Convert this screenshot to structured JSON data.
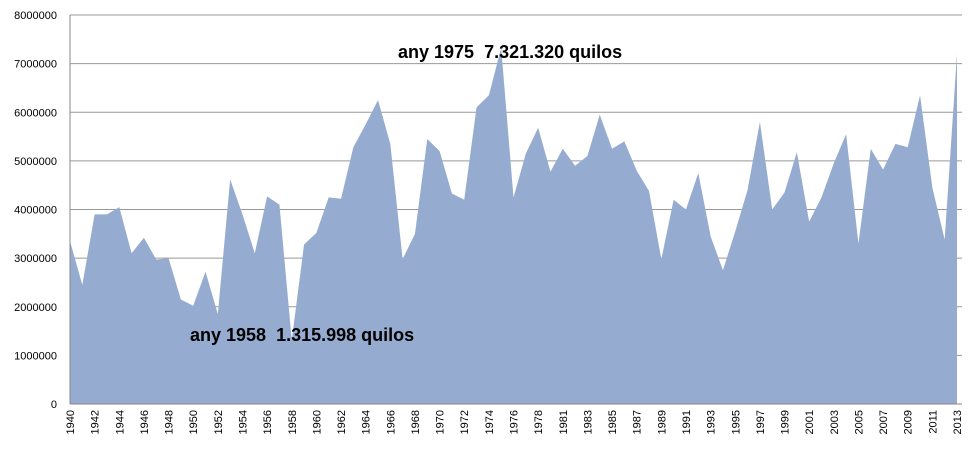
{
  "chart_data": {
    "type": "area",
    "categories": [
      "1940",
      null,
      "1942",
      null,
      "1944",
      null,
      "1946",
      null,
      "1948",
      null,
      "1950",
      null,
      "1952",
      null,
      "1954",
      null,
      "1956",
      null,
      "1958",
      null,
      "1960",
      null,
      "1962",
      null,
      "1964",
      null,
      "1966",
      null,
      "1968",
      null,
      "1970",
      null,
      "1972",
      null,
      "1974",
      null,
      "1976",
      null,
      "1978",
      null,
      "1981",
      null,
      "1983",
      null,
      "1985",
      null,
      "1987",
      null,
      "1989",
      null,
      "1991",
      null,
      "1993",
      null,
      "1995",
      null,
      "1997",
      null,
      "1999",
      null,
      "2001",
      null,
      "2003",
      null,
      "2005",
      null,
      "2007",
      null,
      "2009",
      null,
      "2011",
      null,
      "2013"
    ],
    "values": [
      3350000,
      2450000,
      3900000,
      3900000,
      4050000,
      3100000,
      3420000,
      2970000,
      3000000,
      2150000,
      2020000,
      2720000,
      1850000,
      4620000,
      3900000,
      3100000,
      4270000,
      4100000,
      1315998,
      3280000,
      3520000,
      4250000,
      4220000,
      5280000,
      5750000,
      6250000,
      5350000,
      2980000,
      3500000,
      5450000,
      5200000,
      4330000,
      4200000,
      6100000,
      6350000,
      7321320,
      4250000,
      5150000,
      5680000,
      4780000,
      5250000,
      4900000,
      5100000,
      5950000,
      5250000,
      5400000,
      4800000,
      4380000,
      2980000,
      4200000,
      4000000,
      4750000,
      3450000,
      2750000,
      3550000,
      4400000,
      5800000,
      4000000,
      4350000,
      5180000,
      3750000,
      4250000,
      4950000,
      5550000,
      3300000,
      5250000,
      4820000,
      5350000,
      5280000,
      6350000,
      4450000,
      3380000,
      7200000
    ],
    "color": "#95acd0",
    "ylim": [
      0,
      8000000
    ],
    "yticks": [
      0,
      1000000,
      2000000,
      3000000,
      4000000,
      5000000,
      6000000,
      7000000,
      8000000
    ],
    "grid": true,
    "annotations": [
      {
        "text": "any 1958  1.315.998 quilos",
        "color": "#ffffff"
      },
      {
        "text": "any 1975  7.321.320 quilos",
        "color": "#8ea9d4"
      }
    ]
  }
}
